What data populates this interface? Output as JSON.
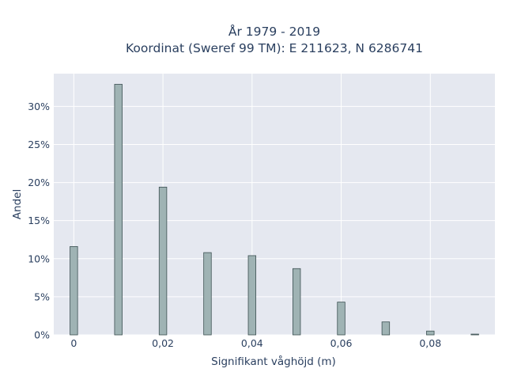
{
  "chart_data": {
    "type": "bar",
    "title_line1": "År 1979 - 2019",
    "title_line2": "Koordinat (Sweref 99 TM): E 211623, N 6286741",
    "xlabel": "Signifikant våghöjd (m)",
    "ylabel": "Andel",
    "x": [
      0,
      0.01,
      0.02,
      0.03,
      0.04,
      0.05,
      0.06,
      0.07,
      0.08,
      0.09
    ],
    "values": [
      11.6,
      32.9,
      19.4,
      10.8,
      10.4,
      8.7,
      4.3,
      1.7,
      0.5,
      0.1
    ],
    "xlim": [
      -0.0045,
      0.0945
    ],
    "ylim": [
      0,
      34.3
    ],
    "xticks": [
      0,
      0.02,
      0.04,
      0.06,
      0.08
    ],
    "xtick_labels": [
      "0",
      "0,02",
      "0,04",
      "0,06",
      "0,08"
    ],
    "yticks": [
      0,
      5,
      10,
      15,
      20,
      25,
      30
    ],
    "ytick_labels": [
      "0%",
      "5%",
      "10%",
      "15%",
      "20%",
      "25%",
      "30%"
    ],
    "bar_width": 0.0017,
    "colors": {
      "plot_bg": "#e5e8f0",
      "bar_fill": "#9fb3b4",
      "bar_line": "#3c5052",
      "text": "#2a3f5f"
    }
  }
}
